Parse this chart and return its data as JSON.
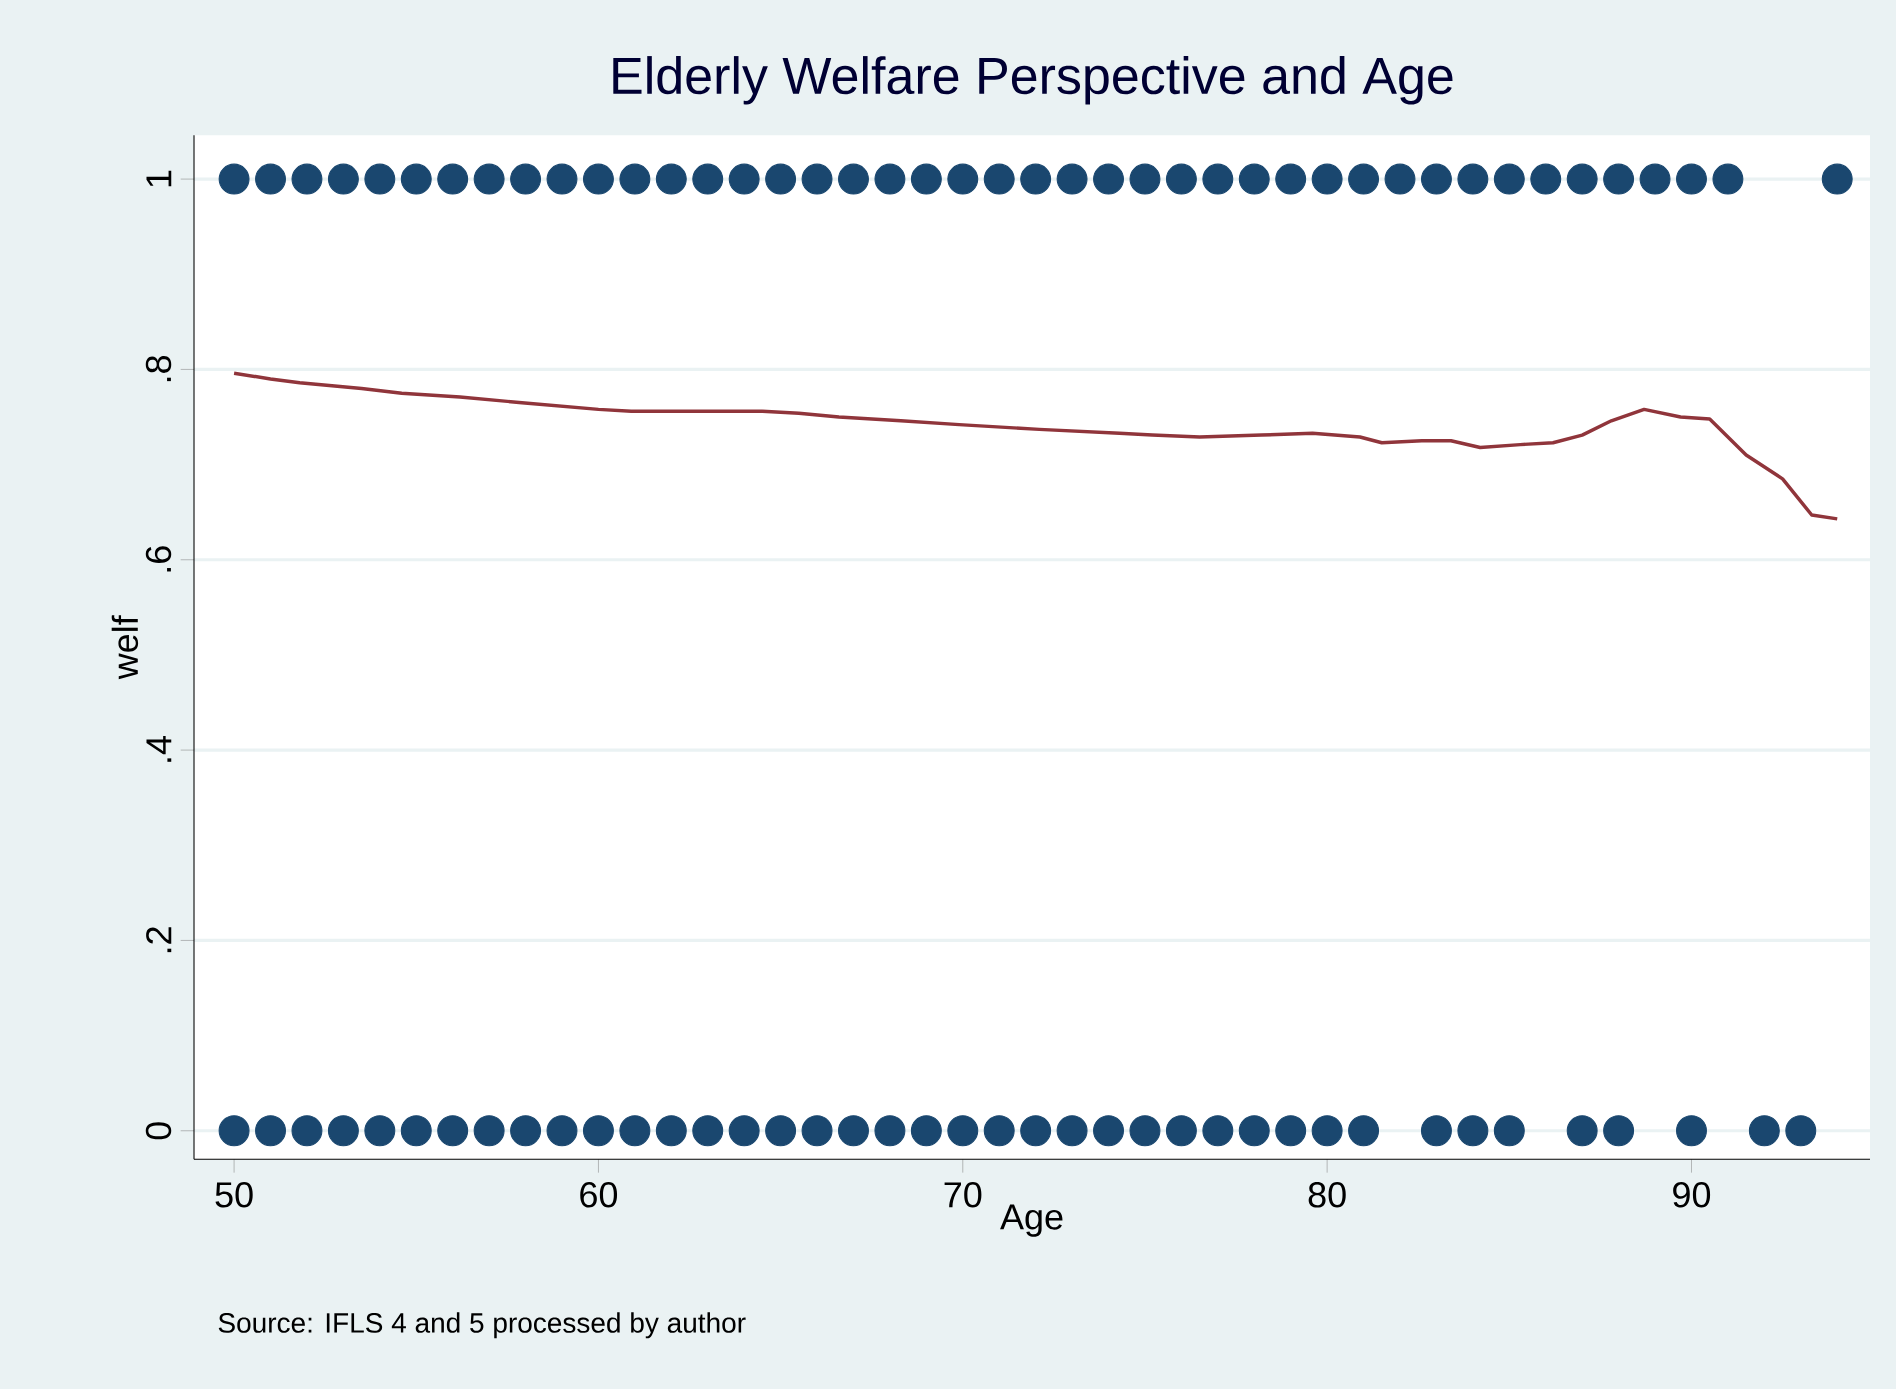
{
  "chart_data": {
    "type": "scatter",
    "title": "Elderly Welfare Perspective and Age",
    "xlabel": "Age",
    "ylabel": "welf",
    "annotations": [
      "Source: IFLS 4 and 5 processed by author"
    ],
    "xlim": [
      48.9,
      94.9
    ],
    "ylim": [
      -0.03,
      1.046
    ],
    "xticks": [
      50,
      60,
      70,
      80,
      90
    ],
    "yticks": [
      0,
      {
        "value": 0.2,
        "label": ".2"
      },
      {
        "value": 0.4,
        "label": ".4"
      },
      {
        "value": 0.6,
        "label": ".6"
      },
      {
        "value": 0.8,
        "label": ".8"
      },
      1
    ],
    "grid": "y",
    "series": [
      {
        "color": "#1a476f",
        "marker": "circle",
        "x": [
          50,
          51,
          52,
          53,
          54,
          55,
          56,
          57,
          58,
          59,
          60,
          61,
          62,
          63,
          64,
          65,
          66,
          67,
          68,
          69,
          70,
          71,
          72,
          73,
          74,
          75,
          76,
          77,
          78,
          79,
          80,
          81,
          82,
          83,
          84,
          85,
          86,
          87,
          88,
          89,
          90,
          91,
          94,
          50,
          51,
          52,
          53,
          54,
          55,
          56,
          57,
          58,
          59,
          60,
          61,
          62,
          63,
          64,
          65,
          66,
          67,
          68,
          69,
          70,
          71,
          72,
          73,
          74,
          75,
          76,
          77,
          78,
          79,
          80,
          81,
          83,
          84,
          85,
          87,
          88,
          90,
          92,
          93
        ],
        "values": [
          1,
          1,
          1,
          1,
          1,
          1,
          1,
          1,
          1,
          1,
          1,
          1,
          1,
          1,
          1,
          1,
          1,
          1,
          1,
          1,
          1,
          1,
          1,
          1,
          1,
          1,
          1,
          1,
          1,
          1,
          1,
          1,
          1,
          1,
          1,
          1,
          1,
          1,
          1,
          1,
          1,
          1,
          1,
          0,
          0,
          0,
          0,
          0,
          0,
          0,
          0,
          0,
          0,
          0,
          0,
          0,
          0,
          0,
          0,
          0,
          0,
          0,
          0,
          0,
          0,
          0,
          0,
          0,
          0,
          0,
          0,
          0,
          0,
          0,
          0,
          0,
          0,
          0,
          0,
          0,
          0,
          0,
          0
        ]
      },
      {
        "type": "line",
        "marker": "none",
        "color": "#90353b",
        "x": [
          50,
          51,
          51.8,
          53.5,
          54.6,
          56.2,
          57.9,
          60,
          60.9,
          62.8,
          64.5,
          65.5,
          66.6,
          68.3,
          69.9,
          72.1,
          73.2,
          74.3,
          75.2,
          76.5,
          78.2,
          79.6,
          80.9,
          81.5,
          82.6,
          83.4,
          84.2,
          85.3,
          86.2,
          87,
          87.8,
          88.7,
          89.7,
          90.5,
          91.5,
          92.5,
          93.3,
          94
        ],
        "values": [
          0.796,
          0.79,
          0.786,
          0.78,
          0.775,
          0.771,
          0.765,
          0.758,
          0.756,
          0.756,
          0.756,
          0.754,
          0.75,
          0.746,
          0.742,
          0.737,
          0.735,
          0.733,
          0.731,
          0.729,
          0.731,
          0.733,
          0.729,
          0.723,
          0.725,
          0.725,
          0.718,
          0.721,
          0.723,
          0.731,
          0.746,
          0.758,
          0.75,
          0.748,
          0.71,
          0.685,
          0.647,
          0.643
        ]
      }
    ]
  }
}
